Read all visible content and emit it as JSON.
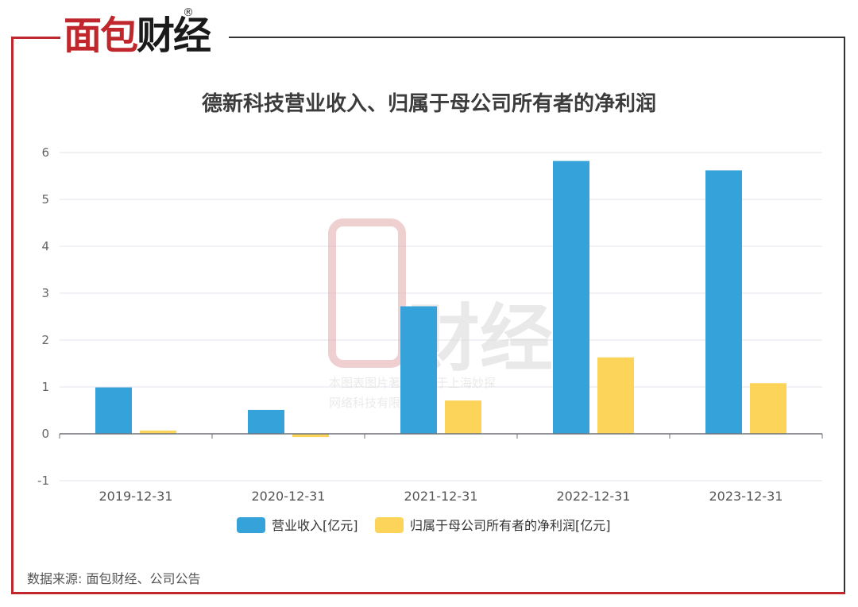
{
  "brand": {
    "logo_text_red": "面包",
    "logo_text_dark": "财经",
    "registered_mark": "®",
    "accent_color": "#c0272d"
  },
  "watermark": {
    "line1": "本图表图片著作权属于上海妙探",
    "line2": "网络科技有限公司"
  },
  "source_note": "数据来源: 面包财经、公司公告",
  "chart_data": {
    "type": "bar",
    "title": "德新科技营业收入、归属于母公司所有者的净利润",
    "categories": [
      "2019-12-31",
      "2020-12-31",
      "2021-12-31",
      "2022-12-31",
      "2023-12-31"
    ],
    "series": [
      {
        "name": "营业收入[亿元]",
        "color": "#36a2da",
        "values": [
          0.99,
          0.51,
          2.72,
          5.82,
          5.62
        ]
      },
      {
        "name": "归属于母公司所有者的净利润[亿元]",
        "color": "#fdd45a",
        "values": [
          0.07,
          -0.07,
          0.71,
          1.63,
          1.08
        ]
      }
    ],
    "ylim": [
      -1,
      6
    ],
    "yticks": [
      "-1",
      "0",
      "1",
      "2",
      "3",
      "4",
      "5",
      "6"
    ],
    "grid": true,
    "legend_position": "bottom-center"
  }
}
